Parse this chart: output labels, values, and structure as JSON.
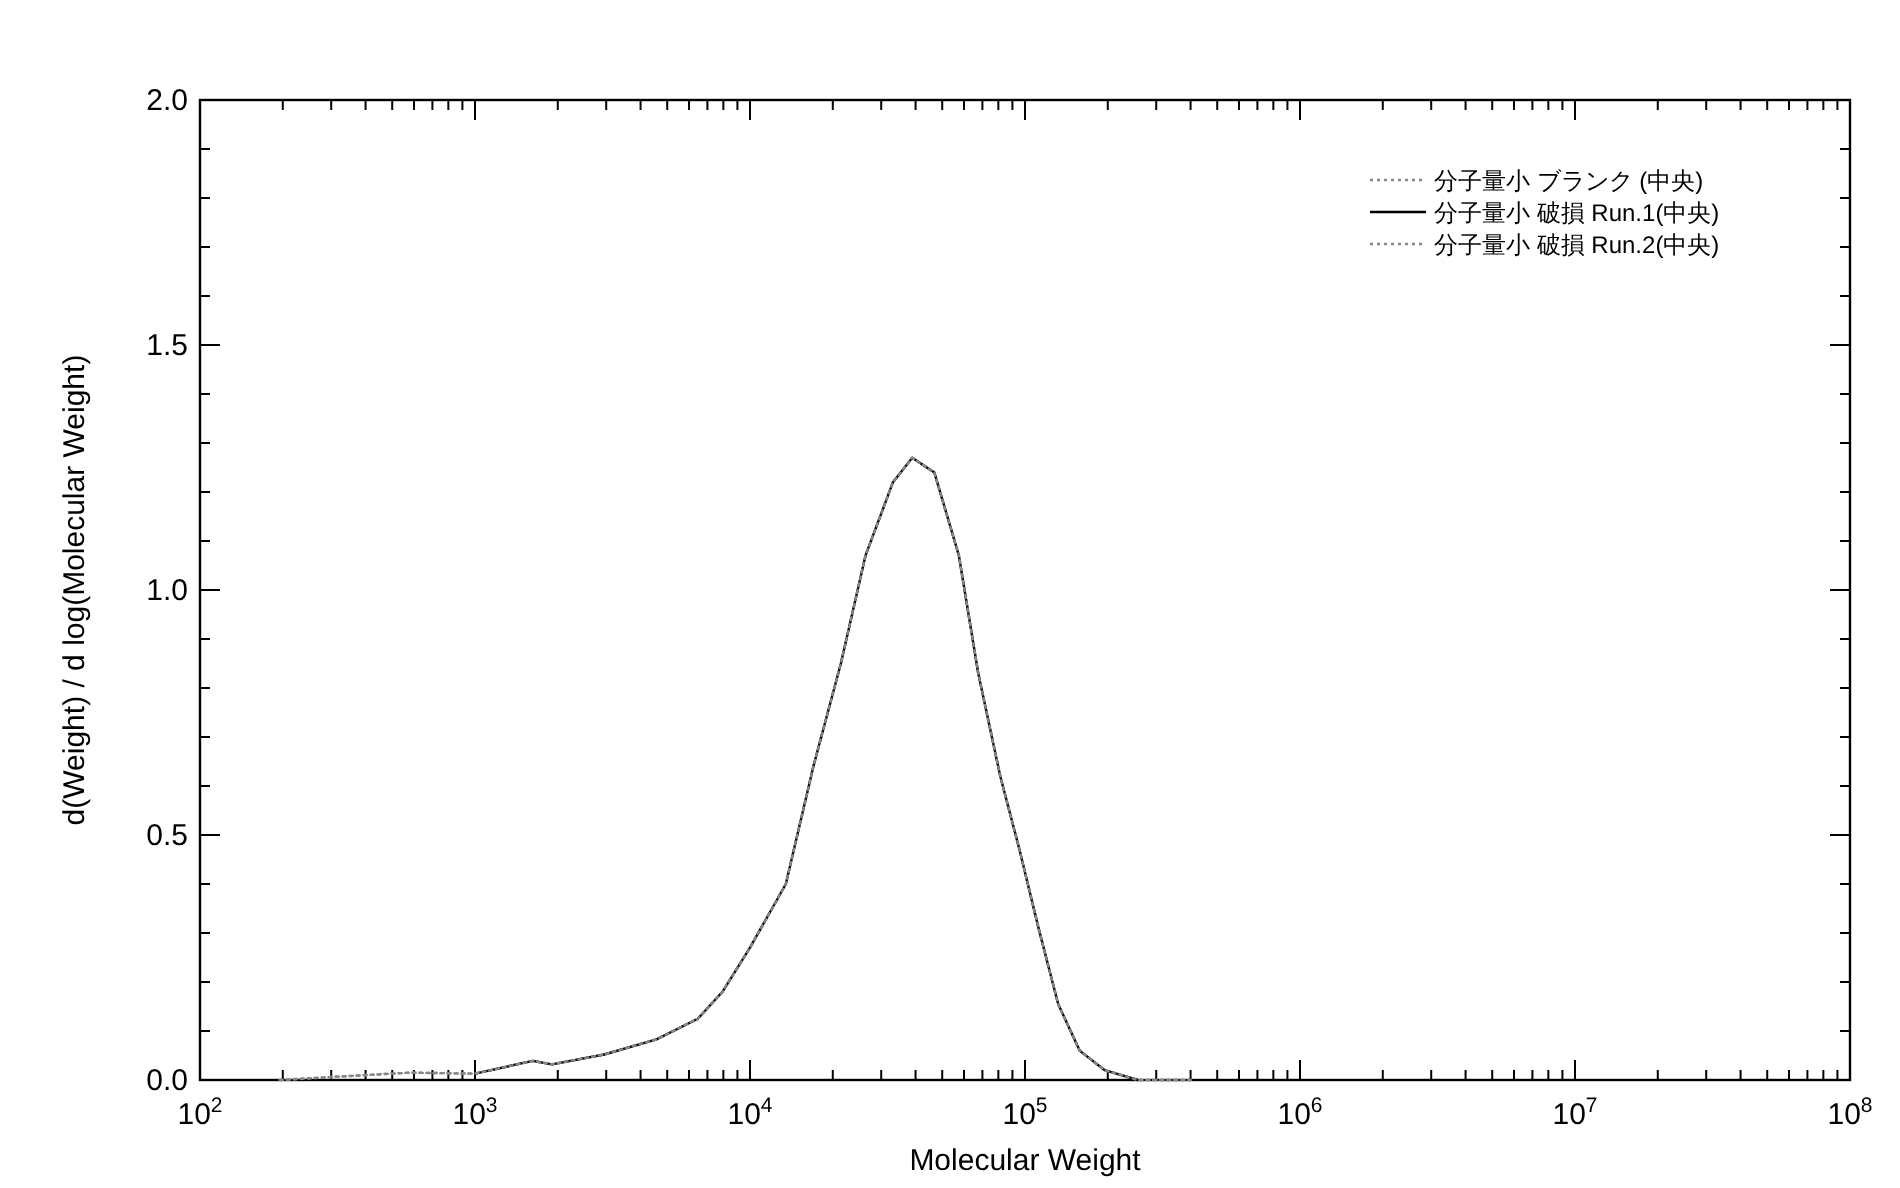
{
  "chart_data": {
    "type": "line",
    "xlabel": "Molecular Weight",
    "ylabel": "d(Weight) / d log(Molecular Weight)",
    "log": "x",
    "legend": "top right",
    "xlim": [
      100,
      100000000
    ],
    "ylim": [
      0,
      2
    ],
    "xticks": [
      {
        "value": 100,
        "label": "10$^{2}$"
      },
      {
        "value": 1000,
        "label": "10$^{3}$"
      },
      {
        "value": 10000,
        "label": "10$^{4}$"
      },
      {
        "value": 100000,
        "label": "10$^{5}$"
      },
      {
        "value": 1000000,
        "label": "10$^{6}$"
      },
      {
        "value": 10000000,
        "label": "10$^{7}$"
      },
      {
        "value": 100000000,
        "label": "10$^{8}$"
      }
    ],
    "yticks": [
      {
        "value": 0,
        "label": "0.0"
      },
      {
        "value": 0.5,
        "label": "0.5"
      },
      {
        "value": 1,
        "label": "1.0"
      },
      {
        "value": 1.5,
        "label": "1.5"
      },
      {
        "value": 2,
        "label": "2.0"
      }
    ],
    "series": [
      {
        "name": "分子量小 ブランク (中央)",
        "color": "#888888",
        "line_style": "dotted",
        "x": [
          195,
          575,
          1000,
          1620,
          1905,
          2950,
          4570,
          6460,
          7940,
          10000,
          13500,
          17000,
          21400,
          26300,
          33100,
          38900,
          46800,
          57500,
          67600,
          81300,
          95500,
          112000,
          132000,
          158000,
          195000,
          257000,
          400000
        ],
        "values": [
          0,
          0.015,
          0.013,
          0.039,
          0.032,
          0.052,
          0.083,
          0.125,
          0.18,
          0.27,
          0.4,
          0.64,
          0.85,
          1.07,
          1.22,
          1.27,
          1.24,
          1.07,
          0.83,
          0.62,
          0.47,
          0.31,
          0.155,
          0.06,
          0.02,
          0,
          0
        ]
      },
      {
        "name": "分子量小 破損 Run.1(中央)",
        "color": "#000000",
        "line_style": "solid",
        "x": [
          1000,
          1620,
          1905,
          2950,
          4570,
          6460,
          7940,
          10000,
          13500,
          17000,
          21400,
          26300,
          33100,
          38900,
          46800,
          57500,
          67600,
          81300,
          95500,
          112000,
          132000,
          158000,
          195000,
          257000
        ],
        "values": [
          0.013,
          0.039,
          0.032,
          0.052,
          0.083,
          0.125,
          0.18,
          0.27,
          0.4,
          0.64,
          0.85,
          1.07,
          1.22,
          1.27,
          1.24,
          1.07,
          0.83,
          0.62,
          0.47,
          0.31,
          0.155,
          0.06,
          0.02,
          0
        ]
      },
      {
        "name": "分子量小 破損 Run.2(中央)",
        "color": "#888888",
        "line_style": "dotted",
        "x": [
          195,
          575,
          1000,
          1620,
          1905,
          2950,
          4570,
          6460,
          7940,
          10000,
          13500,
          17000,
          21400,
          26300,
          33100,
          38900,
          46800,
          57500,
          67600,
          81300,
          95500,
          112000,
          132000,
          158000,
          195000,
          257000,
          400000
        ],
        "values": [
          0,
          0.015,
          0.013,
          0.039,
          0.032,
          0.052,
          0.083,
          0.125,
          0.18,
          0.27,
          0.4,
          0.64,
          0.85,
          1.07,
          1.22,
          1.27,
          1.24,
          1.07,
          0.83,
          0.62,
          0.47,
          0.31,
          0.155,
          0.06,
          0.02,
          0,
          0
        ]
      }
    ]
  }
}
